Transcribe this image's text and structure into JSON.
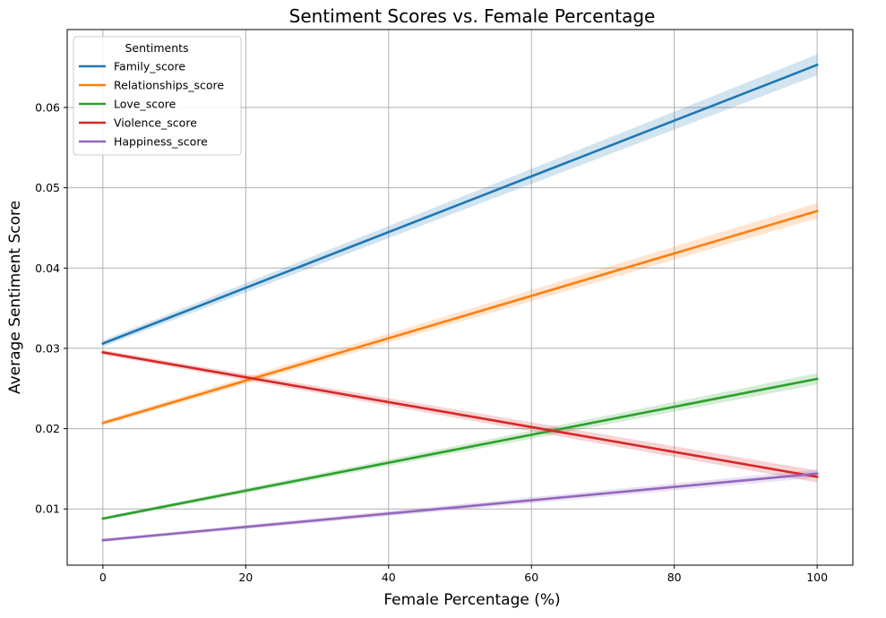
{
  "chart_data": {
    "type": "line",
    "title": "Sentiment Scores vs. Female Percentage",
    "xlabel": "Female Percentage (%)",
    "ylabel": "Average Sentiment Score",
    "xlim": [
      -5,
      105
    ],
    "ylim": [
      0.003,
      0.0697
    ],
    "xticks": [
      0,
      20,
      40,
      60,
      80,
      100
    ],
    "xtick_labels": [
      "0",
      "20",
      "40",
      "60",
      "80",
      "100"
    ],
    "yticks": [
      0.01,
      0.02,
      0.03,
      0.04,
      0.05,
      0.06
    ],
    "ytick_labels": [
      "0.01",
      "0.02",
      "0.03",
      "0.04",
      "0.05",
      "0.06"
    ],
    "grid": true,
    "legend": {
      "title": "Sentiments",
      "placement": "top-left"
    },
    "x": [
      0,
      100
    ],
    "series": [
      {
        "name": "Family_score",
        "color": "#1f77b4",
        "values": [
          0.0306,
          0.0653
        ],
        "ci": [
          [
            0.0302,
            0.031
          ],
          [
            0.064,
            0.0666
          ]
        ]
      },
      {
        "name": "Relationships_score",
        "color": "#ff7f0e",
        "values": [
          0.0207,
          0.0471
        ],
        "ci": [
          [
            0.0204,
            0.021
          ],
          [
            0.0462,
            0.0481
          ]
        ]
      },
      {
        "name": "Love_score",
        "color": "#2ca02c",
        "values": [
          0.0088,
          0.0262
        ],
        "ci": [
          [
            0.0086,
            0.009
          ],
          [
            0.0255,
            0.0269
          ]
        ]
      },
      {
        "name": "Violence_score",
        "color": "#d62728",
        "values": [
          0.0295,
          0.014
        ],
        "ci": [
          [
            0.0292,
            0.0298
          ],
          [
            0.0133,
            0.0148
          ]
        ]
      },
      {
        "name": "Happiness_score",
        "color": "#9467bd",
        "values": [
          0.0061,
          0.0144
        ],
        "ci": [
          [
            0.0059,
            0.0063
          ],
          [
            0.0139,
            0.0149
          ]
        ]
      }
    ]
  }
}
